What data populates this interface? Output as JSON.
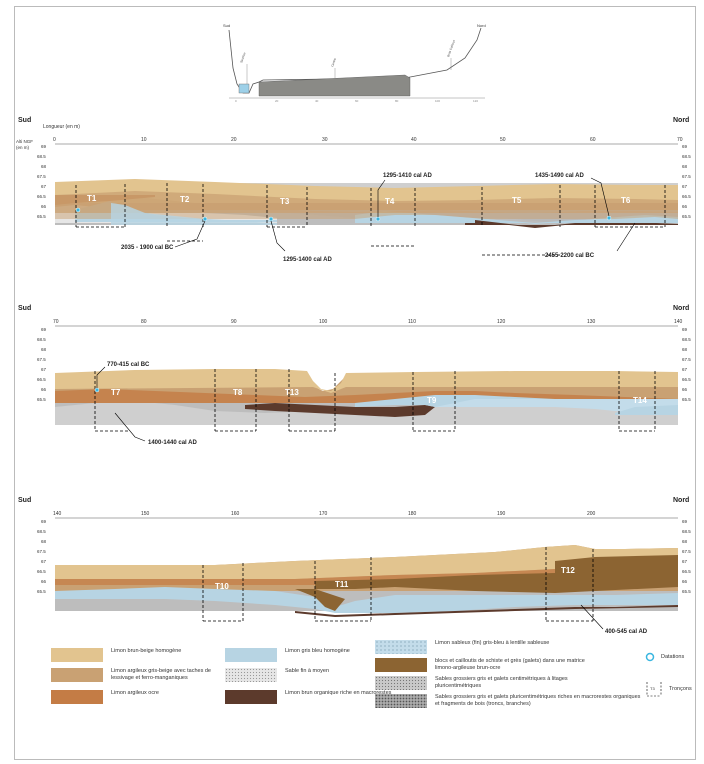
{
  "overview": {
    "south": "Sud",
    "north": "Nord",
    "labels": [
      "Seuillon",
      "Centre",
      "Bras Cailloux"
    ]
  },
  "section_common": {
    "south": "Sud",
    "north": "Nord",
    "length_label": "Longueur (en m)",
    "alt_label_1": "Alti NGF",
    "alt_label_2": "(en m)",
    "y_ticks": [
      "69",
      "68.5",
      "68",
      "67.5",
      "67",
      "66.5",
      "66",
      "65.5"
    ]
  },
  "sections": [
    {
      "x_ticks": [
        "0",
        "10",
        "20",
        "30",
        "40",
        "50",
        "60",
        "70"
      ],
      "segments": [
        "T1",
        "T2",
        "T3",
        "T4",
        "T5",
        "T6"
      ],
      "dates": [
        "1295-1410 cal AD",
        "1435-1490 cal AD",
        "2035 - 1900 cal BC",
        "1295-1400 cal AD",
        "2455-2200 cal BC"
      ]
    },
    {
      "x_ticks": [
        "70",
        "80",
        "90",
        "100",
        "110",
        "120",
        "130",
        "140"
      ],
      "segments": [
        "T7",
        "T8",
        "T13",
        "T9",
        "T14"
      ],
      "dates": [
        "770-415 cal BC",
        "1400-1440 cal AD"
      ]
    },
    {
      "x_ticks": [
        "140",
        "150",
        "160",
        "170",
        "180",
        "190",
        "200"
      ],
      "segments": [
        "T10",
        "T11",
        "T12"
      ],
      "dates": [
        "400-545 cal AD"
      ]
    }
  ],
  "legend": [
    {
      "label": "Limon brun-beige homogène",
      "color": "#e2c48f"
    },
    {
      "label": "Limon argileux gris-beige avec taches de lessivage et ferro-manganiques",
      "color": "#c9a173"
    },
    {
      "label": "Limon argileux ocre",
      "color": "#c47c45"
    },
    {
      "label": "Limon gris bleu homogène",
      "color": "#b7d4e3"
    },
    {
      "label": "Sable fin à moyen",
      "color": "#e6e6e6"
    },
    {
      "label": "Limon brun organique riche en macrorestes",
      "color": "#5c3a2c"
    },
    {
      "label": "Limon sableux (fin) gris-bleu à lentille sableuse",
      "color": "#c3dcea"
    },
    {
      "label": "blocs et cailloutis de schiste et grès (galets) dans une matrice limono-argileuse brun-ocre",
      "color": "#8c6432"
    },
    {
      "label": "Sables grossiers gris et galets centimétriques à litages pluricentimétriques",
      "color": "#c8c8c8"
    },
    {
      "label": "Sables grossiers gris et galets pluricentimétriques riches en macrorestes organiques et fragments de bois (troncs, branches)",
      "color": "#aaaaaa"
    }
  ],
  "legend_right": {
    "datations": "Datations",
    "troncons": "Tronçons",
    "tag": "T3"
  }
}
